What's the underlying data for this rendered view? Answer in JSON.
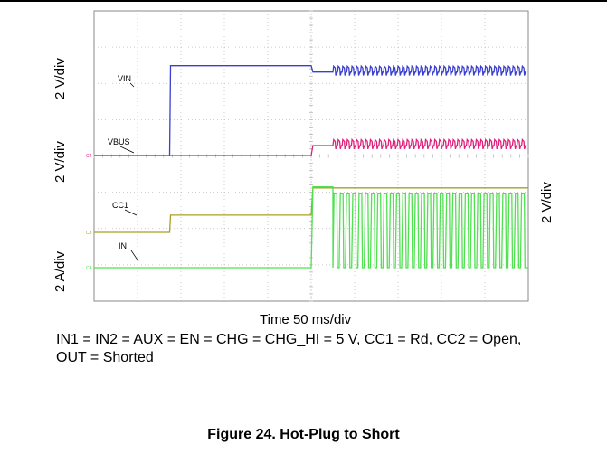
{
  "figure": {
    "caption": "Figure 24. Hot-Plug to Short",
    "conditions": "IN1 = IN2 = AUX = EN = CHG = CHG_HI = 5 V, CC1 = Rd, CC2 = Open, OUT = Shorted"
  },
  "chart_data": {
    "type": "line",
    "title": "",
    "xlabel": "Time 50 ms/div",
    "x_unit": "ms",
    "x_range": [
      0,
      500
    ],
    "grid": true,
    "grid_divisions": {
      "x": 10,
      "y": 8
    },
    "channel_scales": [
      {
        "label": "2 V/div",
        "applies_to": [
          "VIN"
        ]
      },
      {
        "label": "2 V/div",
        "applies_to": [
          "VBUS"
        ]
      },
      {
        "label": "2 A/div",
        "applies_to": [
          "IN"
        ]
      },
      {
        "label": "2 V/div",
        "applies_to": [
          "CC1"
        ]
      }
    ],
    "series": [
      {
        "name": "VIN",
        "color": "#3a3fcf",
        "marker": "",
        "x": [
          0,
          87,
          88,
          250,
          252,
          500
        ],
        "y": [
          0.0,
          0.0,
          4.95,
          4.95,
          4.6,
          4.6
        ],
        "oscillation": {
          "start": 275,
          "amplitude": 0.32
        }
      },
      {
        "name": "VBUS",
        "color": "#e0207c",
        "marker": "C2",
        "x": [
          0,
          87,
          250,
          252,
          500
        ],
        "y": [
          0.0,
          0.0,
          0.0,
          0.55,
          0.55
        ],
        "oscillation": {
          "start": 275,
          "amplitude": 0.32
        }
      },
      {
        "name": "CC1",
        "color": "#a8a020",
        "marker": "C3",
        "x": [
          0,
          87,
          88,
          250,
          252,
          500
        ],
        "y": [
          0.0,
          0.0,
          0.95,
          0.95,
          2.45,
          2.45
        ],
        "oscillation": null
      },
      {
        "name": "IN",
        "color": "#50e050",
        "marker": "C4",
        "x": [
          0,
          250,
          252,
          270,
          500
        ],
        "y": [
          0.0,
          0.0,
          4.45,
          4.45,
          4.45
        ],
        "oscillation": {
          "start": 275,
          "pulses": true,
          "low": 0.0,
          "high": 4.1
        }
      }
    ]
  }
}
